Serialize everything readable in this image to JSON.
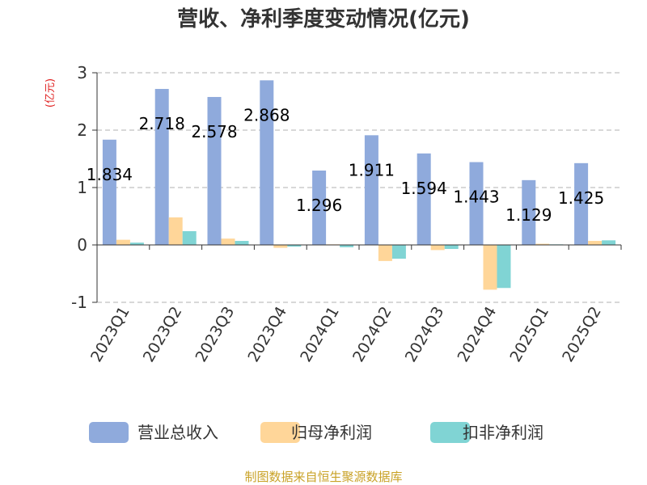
{
  "chart_data": {
    "type": "bar",
    "title": "营收、净利季度变动情况(亿元)",
    "ylabel": "(亿元)",
    "categories": [
      "2023Q1",
      "2023Q2",
      "2023Q3",
      "2023Q4",
      "2024Q1",
      "2024Q2",
      "2024Q3",
      "2024Q4",
      "2025Q1",
      "2025Q2"
    ],
    "series": [
      {
        "name": "营业总收入",
        "color": "#8faadc",
        "values": [
          1.834,
          2.718,
          2.578,
          2.868,
          1.296,
          1.911,
          1.594,
          1.443,
          1.129,
          1.425
        ],
        "show_labels": true
      },
      {
        "name": "归母净利润",
        "color": "#ffd699",
        "values": [
          0.09,
          0.48,
          0.11,
          -0.05,
          0.01,
          -0.28,
          -0.09,
          -0.78,
          0.02,
          0.07
        ],
        "show_labels": false
      },
      {
        "name": "扣非净利润",
        "color": "#80d4d4",
        "values": [
          0.04,
          0.24,
          0.07,
          -0.03,
          -0.04,
          -0.24,
          -0.07,
          -0.75,
          0.01,
          0.08
        ],
        "show_labels": false
      }
    ],
    "yticks": [
      3,
      2,
      1,
      0,
      -1
    ],
    "ylim": [
      -1,
      3
    ],
    "grid": true,
    "legend": "bottom"
  },
  "source_text": "制图数据来自恒生聚源数据库",
  "colors": {
    "ylabel": "#e02020",
    "source": "#c9a227",
    "grid": "#cccccc",
    "axis": "#333333"
  }
}
